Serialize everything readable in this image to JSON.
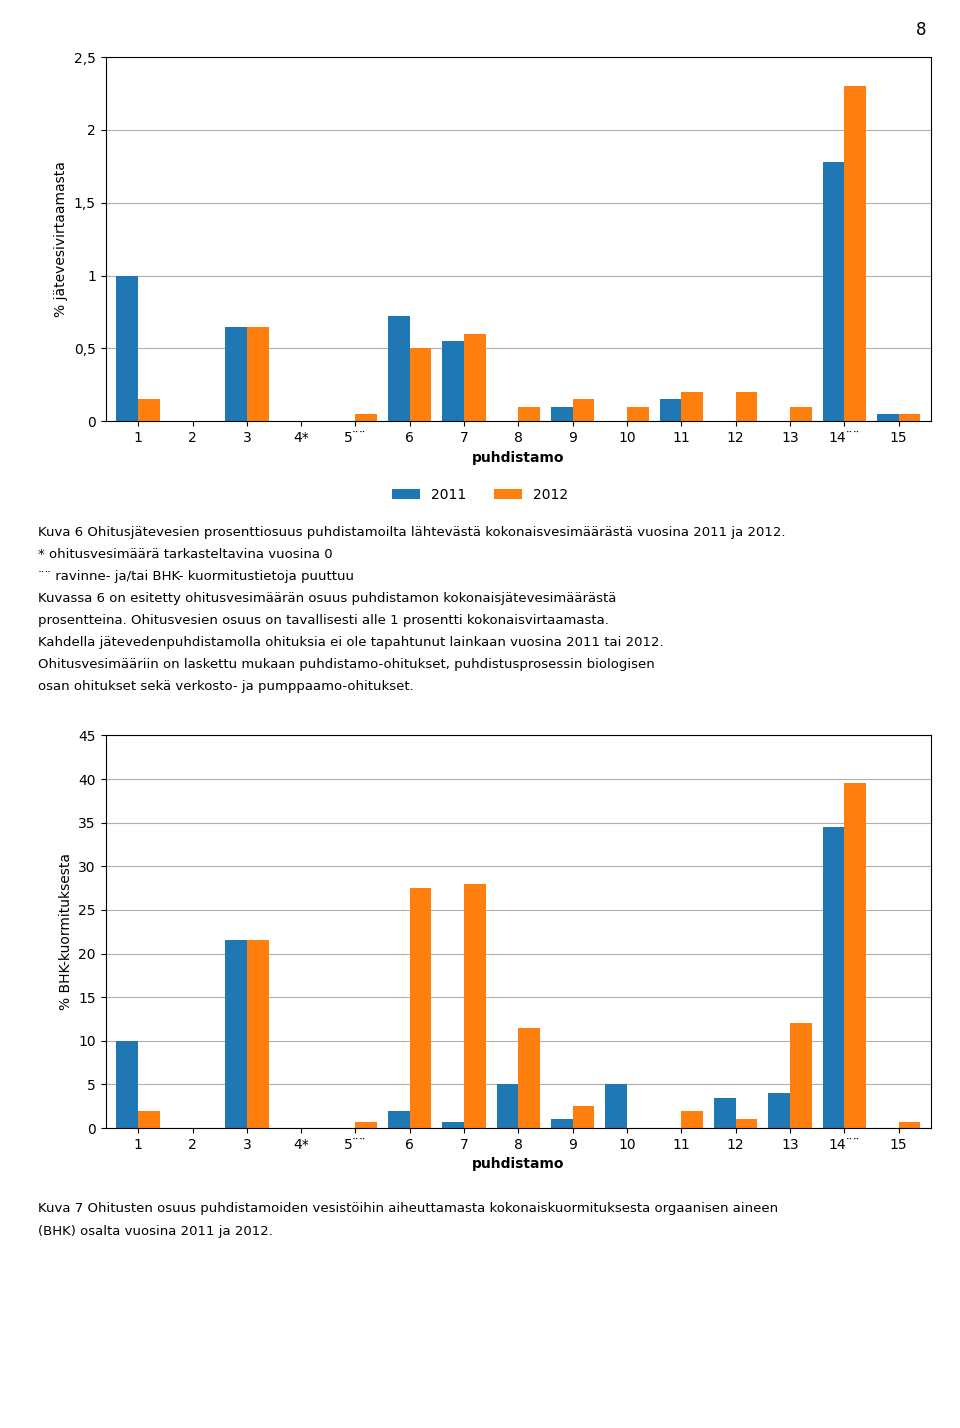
{
  "chart_data": [
    {
      "type": "bar",
      "xlabel": "puhdistamo",
      "ylabel": "% jätevesivirtaamasta",
      "categories": [
        "1",
        "2",
        "3",
        "4*",
        "5¨¨",
        "6",
        "7",
        "8",
        "9",
        "10",
        "11",
        "12",
        "13",
        "14¨¨",
        "15"
      ],
      "series": [
        {
          "name": "2011",
          "values": [
            1.0,
            0,
            0.65,
            0,
            0,
            0.72,
            0.55,
            0,
            0.1,
            0,
            0.15,
            0,
            0,
            1.78,
            0.05
          ]
        },
        {
          "name": "2012",
          "values": [
            0.15,
            0,
            0.65,
            0,
            0.05,
            0.5,
            0.6,
            0.1,
            0.15,
            0.1,
            0.2,
            0.2,
            0.1,
            2.3,
            0.05
          ]
        }
      ],
      "ylim": [
        0,
        2.5
      ],
      "yticks": [
        0,
        {
          "value": 0.5,
          "label": "0,5"
        },
        1,
        {
          "value": 1.5,
          "label": "1,5"
        },
        2,
        {
          "value": 2.5,
          "label": "2,5"
        }
      ],
      "grid": true,
      "legend": "upper center",
      "annotations": [
        "Kuva 6 Ohitusjätevesien prosenttiosuus puhdistamoilta lähtevästä kokonaisvesimäärästä vuosina 2011 ja 2012.",
        "* ohitusvesimäärä tarkasteltavina vuosina 0",
        "¨¨ ravinne- ja/tai BHK- kuormitustietoja puuttuu",
        "Kuvassa 6 on esitetty ohitusvesimäärän osuus puhdistamon kokonaisjätevesimäärästä",
        "prosentteina. Ohitusvesien osuus on tavallisesti alle 1 prosentti kokonaisvirtaamasta.",
        "Kahdella jätevedenpuhdistamolla ohituksia ei ole tapahtunut lainkaan vuosina 2011 tai 2012.",
        "Ohitusvesimääriin on laskettu mukaan puhdistamo-ohitukset, puhdistusprosessin biologisen",
        "osan ohitukset sekä verkosto- ja pumppaamo-ohitukset."
      ]
    },
    {
      "type": "bar",
      "xlabel": "puhdistamo",
      "ylabel": "% BHK-kuormituksesta",
      "categories": [
        "1",
        "2",
        "3",
        "4*",
        "5¨¨",
        "6",
        "7",
        "8",
        "9",
        "10",
        "11",
        "12",
        "13",
        "14¨¨",
        "15"
      ],
      "series": [
        {
          "name": "2011",
          "values": [
            10.0,
            0,
            21.5,
            0,
            0,
            2.0,
            0.7,
            5.0,
            1.0,
            5.0,
            0,
            3.5,
            4.0,
            34.5,
            0
          ]
        },
        {
          "name": "2012",
          "values": [
            2.0,
            0,
            21.5,
            0,
            0.7,
            27.5,
            28.0,
            11.5,
            2.5,
            0,
            2.0,
            1.0,
            12.0,
            39.5,
            0.7
          ]
        }
      ],
      "ylim": [
        0,
        45
      ],
      "yticks": [
        0,
        5,
        10,
        15,
        20,
        25,
        30,
        35,
        40,
        45
      ],
      "grid": true,
      "legend": false,
      "annotations": [
        "Kuva 7 Ohitusten osuus puhdistamoiden vesistöihin aiheuttamasta kokonaiskuormituksesta orgaanisen aineen",
        "(BHK) osalta vuosina 2011 ja 2012."
      ]
    }
  ],
  "annotations": [
    "8"
  ]
}
